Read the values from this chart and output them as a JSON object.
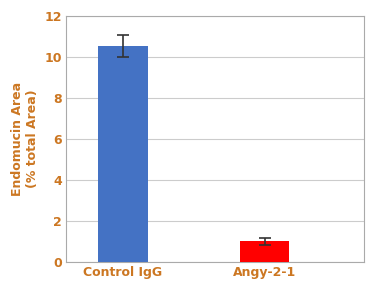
{
  "categories": [
    "Control IgG",
    "Angy-2-1"
  ],
  "values": [
    10.55,
    1.0
  ],
  "errors": [
    0.55,
    0.18
  ],
  "bar_colors": [
    "#4472C4",
    "#FF0000"
  ],
  "ylabel": "Endomucin Area\n(% total Area)",
  "ylim": [
    0,
    12
  ],
  "yticks": [
    0,
    2,
    4,
    6,
    8,
    10,
    12
  ],
  "tick_label_color": "#CC7722",
  "axis_label_color": "#CC7722",
  "x_tick_color": "#CC7722",
  "background_color": "#ffffff",
  "bar_width": 0.35,
  "grid_color": "#cccccc",
  "error_capsize": 4,
  "error_color": "#333333",
  "error_linewidth": 1.2,
  "figsize": [
    3.75,
    2.9
  ],
  "dpi": 100
}
